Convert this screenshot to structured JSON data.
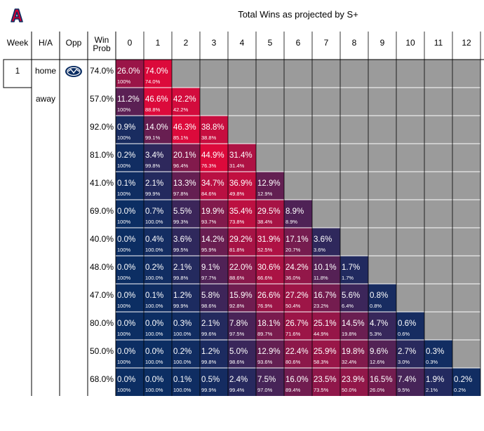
{
  "title": "Total Wins as projected by S+",
  "colors": {
    "navy": "#0c2e63",
    "red": "#dc0a3b",
    "gray": "#9b9b9b",
    "line": "#000000",
    "text_on_cell": "#ffffff",
    "logo_blue": "#0c2e63",
    "logo_red": "#cc0033"
  },
  "logo": {
    "icon": "arizona-block-a-logo"
  },
  "opponent_logo": {
    "icon": "byu-logo",
    "row": 0
  },
  "chart_data": {
    "type": "table",
    "title": "Total Wins as projected by S+",
    "columns": {
      "week": "Week",
      "ha": "H/A",
      "opp": "Opp",
      "win_prob": "Win\nProb",
      "wins": [
        "0",
        "1",
        "2",
        "3",
        "4",
        "5",
        "6",
        "7",
        "8",
        "9",
        "10",
        "11",
        "12"
      ]
    },
    "rows": [
      {
        "week": "1",
        "ha": "home",
        "win_prob": "74.0%",
        "cells": [
          [
            "26.0%",
            "100%"
          ],
          [
            "74.0%",
            "74.0%"
          ]
        ]
      },
      {
        "week": "",
        "ha": "away",
        "win_prob": "57.0%",
        "cells": [
          [
            "11.2%",
            "100%"
          ],
          [
            "46.6%",
            "88.8%"
          ],
          [
            "42.2%",
            "42.2%"
          ]
        ]
      },
      {
        "week": "",
        "ha": "",
        "win_prob": "92.0%",
        "cells": [
          [
            "0.9%",
            "100%"
          ],
          [
            "14.0%",
            "99.1%"
          ],
          [
            "46.3%",
            "85.1%"
          ],
          [
            "38.8%",
            "38.8%"
          ]
        ]
      },
      {
        "week": "",
        "ha": "",
        "win_prob": "81.0%",
        "cells": [
          [
            "0.2%",
            "100%"
          ],
          [
            "3.4%",
            "99.8%"
          ],
          [
            "20.1%",
            "96.4%"
          ],
          [
            "44.9%",
            "76.3%"
          ],
          [
            "31.4%",
            "31.4%"
          ]
        ]
      },
      {
        "week": "",
        "ha": "",
        "win_prob": "41.0%",
        "cells": [
          [
            "0.1%",
            "100%"
          ],
          [
            "2.1%",
            "99.9%"
          ],
          [
            "13.3%",
            "97.8%"
          ],
          [
            "34.7%",
            "84.6%"
          ],
          [
            "36.9%",
            "49.8%"
          ],
          [
            "12.9%",
            "12.9%"
          ]
        ]
      },
      {
        "week": "",
        "ha": "",
        "win_prob": "69.0%",
        "cells": [
          [
            "0.0%",
            "100%"
          ],
          [
            "0.7%",
            "100.0%"
          ],
          [
            "5.5%",
            "99.3%"
          ],
          [
            "19.9%",
            "93.7%"
          ],
          [
            "35.4%",
            "73.8%"
          ],
          [
            "29.5%",
            "38.4%"
          ],
          [
            "8.9%",
            "8.9%"
          ]
        ]
      },
      {
        "week": "",
        "ha": "",
        "win_prob": "40.0%",
        "cells": [
          [
            "0.0%",
            "100%"
          ],
          [
            "0.4%",
            "100.0%"
          ],
          [
            "3.6%",
            "99.5%"
          ],
          [
            "14.2%",
            "95.9%"
          ],
          [
            "29.2%",
            "81.8%"
          ],
          [
            "31.9%",
            "52.5%"
          ],
          [
            "17.1%",
            "20.7%"
          ],
          [
            "3.6%",
            "3.6%"
          ]
        ]
      },
      {
        "week": "",
        "ha": "",
        "win_prob": "48.0%",
        "cells": [
          [
            "0.0%",
            "100%"
          ],
          [
            "0.2%",
            "100.0%"
          ],
          [
            "2.1%",
            "99.8%"
          ],
          [
            "9.1%",
            "97.7%"
          ],
          [
            "22.0%",
            "88.6%"
          ],
          [
            "30.6%",
            "66.6%"
          ],
          [
            "24.2%",
            "36.0%"
          ],
          [
            "10.1%",
            "11.8%"
          ],
          [
            "1.7%",
            "1.7%"
          ]
        ]
      },
      {
        "week": "",
        "ha": "",
        "win_prob": "47.0%",
        "cells": [
          [
            "0.0%",
            "100%"
          ],
          [
            "0.1%",
            "100.0%"
          ],
          [
            "1.2%",
            "99.9%"
          ],
          [
            "5.8%",
            "98.6%"
          ],
          [
            "15.9%",
            "92.8%"
          ],
          [
            "26.6%",
            "76.9%"
          ],
          [
            "27.2%",
            "50.4%"
          ],
          [
            "16.7%",
            "23.2%"
          ],
          [
            "5.6%",
            "6.4%"
          ],
          [
            "0.8%",
            "0.8%"
          ]
        ]
      },
      {
        "week": "",
        "ha": "",
        "win_prob": "80.0%",
        "cells": [
          [
            "0.0%",
            "100%"
          ],
          [
            "0.0%",
            "100.0%"
          ],
          [
            "0.3%",
            "100.0%"
          ],
          [
            "2.1%",
            "99.6%"
          ],
          [
            "7.8%",
            "97.5%"
          ],
          [
            "18.1%",
            "89.7%"
          ],
          [
            "26.7%",
            "71.6%"
          ],
          [
            "25.1%",
            "44.9%"
          ],
          [
            "14.5%",
            "19.8%"
          ],
          [
            "4.7%",
            "5.3%"
          ],
          [
            "0.6%",
            "0.6%"
          ]
        ]
      },
      {
        "week": "",
        "ha": "",
        "win_prob": "50.0%",
        "cells": [
          [
            "0.0%",
            "100%"
          ],
          [
            "0.0%",
            "100.0%"
          ],
          [
            "0.2%",
            "100.0%"
          ],
          [
            "1.2%",
            "99.8%"
          ],
          [
            "5.0%",
            "98.6%"
          ],
          [
            "12.9%",
            "93.6%"
          ],
          [
            "22.4%",
            "80.6%"
          ],
          [
            "25.9%",
            "58.3%"
          ],
          [
            "19.8%",
            "32.4%"
          ],
          [
            "9.6%",
            "12.6%"
          ],
          [
            "2.7%",
            "3.0%"
          ],
          [
            "0.3%",
            "0.3%"
          ]
        ]
      },
      {
        "week": "",
        "ha": "",
        "win_prob": "68.0%",
        "cells": [
          [
            "0.0%",
            "100%"
          ],
          [
            "0.0%",
            "100.0%"
          ],
          [
            "0.1%",
            "100.0%"
          ],
          [
            "0.5%",
            "99.9%"
          ],
          [
            "2.4%",
            "99.4%"
          ],
          [
            "7.5%",
            "97.0%"
          ],
          [
            "16.0%",
            "89.4%"
          ],
          [
            "23.5%",
            "73.5%"
          ],
          [
            "23.9%",
            "50.0%"
          ],
          [
            "16.5%",
            "26.0%"
          ],
          [
            "7.4%",
            "9.5%"
          ],
          [
            "1.9%",
            "2.1%"
          ],
          [
            "0.2%",
            "0.2%"
          ]
        ]
      }
    ]
  }
}
